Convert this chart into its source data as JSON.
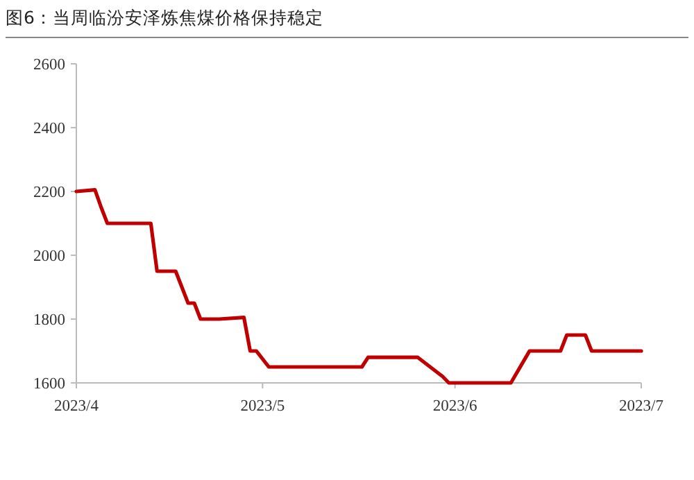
{
  "chart_data": {
    "type": "line",
    "title": "图6：当周临汾安泽炼焦煤价格保持稳定",
    "x": [
      "2023-04-01",
      "2023-04-04",
      "2023-04-05",
      "2023-04-06",
      "2023-04-13",
      "2023-04-14",
      "2023-04-17",
      "2023-04-19",
      "2023-04-20",
      "2023-04-21",
      "2023-04-24",
      "2023-04-28",
      "2023-04-29",
      "2023-04-30",
      "2023-05-02",
      "2023-05-17",
      "2023-05-18",
      "2023-05-26",
      "2023-05-28",
      "2023-05-30",
      "2023-05-31",
      "2023-06-10",
      "2023-06-13",
      "2023-06-18",
      "2023-06-19",
      "2023-06-22",
      "2023-06-23",
      "2023-07-01"
    ],
    "series": [
      {
        "color": "#c00000",
        "values": [
          2200,
          2205,
          2150,
          2100,
          2100,
          1950,
          1950,
          1850,
          1850,
          1800,
          1800,
          1805,
          1700,
          1700,
          1650,
          1650,
          1680,
          1680,
          1650,
          1620,
          1600,
          1600,
          1700,
          1700,
          1750,
          1750,
          1700,
          1700
        ]
      }
    ],
    "xlim": [
      "2023-04-01",
      "2023-07-01"
    ],
    "xticks": [
      {
        "value": "2023-04-01",
        "label": "2023/4"
      },
      {
        "value": "2023-05-01",
        "label": "2023/5"
      },
      {
        "value": "2023-06-01",
        "label": "2023/6"
      },
      {
        "value": "2023-07-01",
        "label": "2023/7"
      }
    ],
    "ylim": [
      1600,
      2600
    ],
    "yticks": [
      1600,
      1800,
      2000,
      2200,
      2400,
      2600
    ],
    "grid": false,
    "marker": "none",
    "line_style": "solid"
  }
}
